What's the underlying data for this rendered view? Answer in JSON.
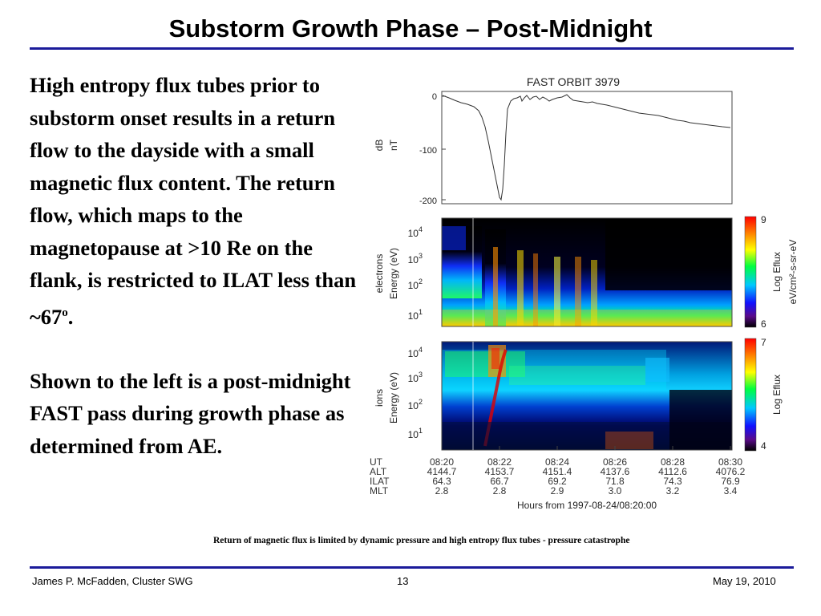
{
  "slide": {
    "title": "Substorm Growth Phase – Post-Midnight",
    "paragraph_1": "High entropy flux tubes prior to substorm onset results in a return flow to the dayside with a small magnetic flux content.  The return flow, which maps to the magnetopause at >10 Re on the flank, is restricted to ILAT less than ~67",
    "paragraph_1_sup": "o",
    "paragraph_1_end": ".",
    "paragraph_2": "Shown to the left is a post-midnight FAST pass during growth phase as determined from AE.",
    "caption": "Return of magnetic flux is limited by dynamic pressure and high entropy flux tubes - pressure catastrophe"
  },
  "footer": {
    "author": "James P. McFadden, Cluster SWG",
    "page_number": "13",
    "date": "May 19, 2010"
  },
  "figure": {
    "title": "FAST ORBIT 3979",
    "panel_b": {
      "ylabel_1": "dB",
      "ylabel_2": "nT",
      "ticks": [
        "0",
        "-100",
        "-200"
      ]
    },
    "panel_electrons": {
      "ylabel_1": "electrons",
      "ylabel_2": "Energy (eV)",
      "yticks": [
        "10",
        "10",
        "10",
        "10"
      ],
      "ytick_exps": [
        "4",
        "3",
        "2",
        "1"
      ],
      "colorbar_label": "Log Eflux",
      "colorbar_units": "eV/cm²-s-sr-eV",
      "colorbar_max": "9",
      "colorbar_min": "6"
    },
    "panel_ions": {
      "ylabel_1": "ions",
      "ylabel_2": "Energy (eV)",
      "yticks": [
        "10",
        "10",
        "10",
        "10"
      ],
      "ytick_exps": [
        "4",
        "3",
        "2",
        "1"
      ],
      "colorbar_label": "Log Eflux",
      "colorbar_max": "7",
      "colorbar_min": "4"
    },
    "row_labels": [
      "UT",
      "ALT",
      "ILAT",
      "MLT"
    ],
    "columns": [
      {
        "UT": "08:20",
        "ALT": "4144.7",
        "ILAT": "64.3",
        "MLT": "2.8"
      },
      {
        "UT": "08:22",
        "ALT": "4153.7",
        "ILAT": "66.7",
        "MLT": "2.8"
      },
      {
        "UT": "08:24",
        "ALT": "4151.4",
        "ILAT": "69.2",
        "MLT": "2.9"
      },
      {
        "UT": "08:26",
        "ALT": "4137.6",
        "ILAT": "71.8",
        "MLT": "3.0"
      },
      {
        "UT": "08:28",
        "ALT": "4112.6",
        "ILAT": "74.3",
        "MLT": "3.2"
      },
      {
        "UT": "08:30",
        "ALT": "4076.2",
        "ILAT": "76.9",
        "MLT": "3.4"
      }
    ],
    "xlabel": "Hours from 1997-08-24/08:20:00"
  },
  "colors": {
    "rule": "#1b1b9a"
  }
}
